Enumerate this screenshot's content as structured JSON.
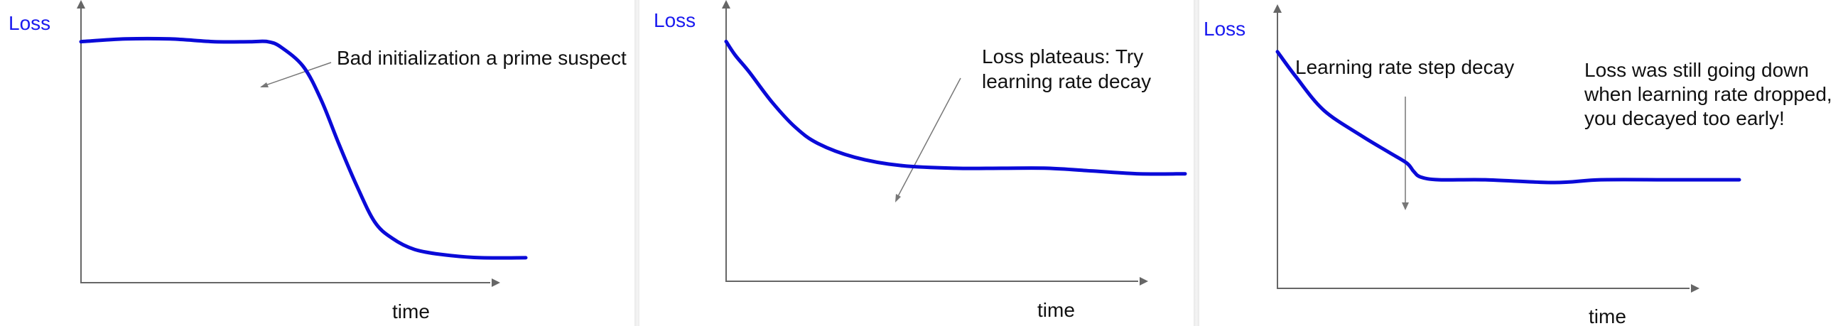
{
  "chart_data": [
    {
      "type": "line",
      "ylabel": "Loss",
      "xlabel": "time",
      "annotations": [
        {
          "lines": [
            "Bad initialization a prime suspect"
          ]
        }
      ],
      "series": [
        {
          "values": [
            [
              0.0,
              0.87
            ],
            [
              0.1,
              0.88
            ],
            [
              0.2,
              0.88
            ],
            [
              0.3,
              0.87
            ],
            [
              0.38,
              0.87
            ],
            [
              0.42,
              0.87
            ],
            [
              0.45,
              0.85
            ],
            [
              0.5,
              0.78
            ],
            [
              0.54,
              0.66
            ],
            [
              0.58,
              0.5
            ],
            [
              0.62,
              0.35
            ],
            [
              0.66,
              0.22
            ],
            [
              0.7,
              0.16
            ],
            [
              0.75,
              0.12
            ],
            [
              0.82,
              0.1
            ],
            [
              0.9,
              0.09
            ],
            [
              1.0,
              0.09
            ]
          ]
        }
      ],
      "color": "#0a0ad8"
    },
    {
      "type": "line",
      "ylabel": "Loss",
      "xlabel": "time",
      "annotations": [
        {
          "lines": [
            "Loss plateaus: Try",
            "learning rate decay"
          ]
        }
      ],
      "series": [
        {
          "values": [
            [
              0.0,
              0.87
            ],
            [
              0.02,
              0.82
            ],
            [
              0.05,
              0.76
            ],
            [
              0.1,
              0.65
            ],
            [
              0.15,
              0.56
            ],
            [
              0.2,
              0.5
            ],
            [
              0.28,
              0.45
            ],
            [
              0.38,
              0.42
            ],
            [
              0.5,
              0.41
            ],
            [
              0.6,
              0.41
            ],
            [
              0.7,
              0.41
            ],
            [
              0.8,
              0.4
            ],
            [
              0.9,
              0.39
            ],
            [
              1.0,
              0.39
            ]
          ]
        }
      ],
      "color": "#0a0ad8"
    },
    {
      "type": "line",
      "ylabel": "Loss",
      "xlabel": "time",
      "annotations": [
        {
          "lines": [
            "Learning rate step decay"
          ]
        },
        {
          "lines": [
            "Loss was still going down",
            "when learning rate dropped,",
            "you decayed too early!"
          ]
        }
      ],
      "series": [
        {
          "values": [
            [
              0.0,
              0.85
            ],
            [
              0.04,
              0.76
            ],
            [
              0.1,
              0.64
            ],
            [
              0.18,
              0.55
            ],
            [
              0.24,
              0.49
            ],
            [
              0.28,
              0.45
            ],
            [
              0.295,
              0.42
            ],
            [
              0.31,
              0.4
            ],
            [
              0.35,
              0.39
            ],
            [
              0.45,
              0.39
            ],
            [
              0.6,
              0.38
            ],
            [
              0.7,
              0.39
            ],
            [
              0.85,
              0.39
            ],
            [
              1.0,
              0.39
            ]
          ]
        }
      ],
      "color": "#0a0ad8"
    }
  ]
}
